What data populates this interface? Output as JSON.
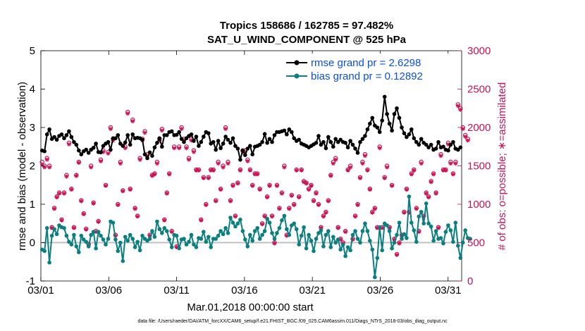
{
  "chart_data": {
    "type": "line",
    "title_line1": "Tropics 158686 / 162785 = 97.482%",
    "title_line2": "SAT_U_WIND_COMPONENT @ 525 hPa",
    "xlabel": "Mar.01,2018 00:00:00 start",
    "ylabel_left": "rmse and bias (model - observation)",
    "ylabel_right": "# of obs: o=possible; ∗=assimilated",
    "footer": "data file: /Users/raeder/DAI/ATM_forcXX/CAM6_setup/f.e21.FHIST_BGC.f09_025.CAM6assim.011/Diags_NTrS_2018-03/obs_diag_output.nc",
    "x_tick_labels": [
      "03/01",
      "03/06",
      "03/11",
      "03/16",
      "03/21",
      "03/26",
      "03/31"
    ],
    "x_tick_days": [
      1,
      6,
      11,
      16,
      21,
      26,
      31
    ],
    "xlim": [
      1,
      32
    ],
    "ylim_left": [
      -1,
      5
    ],
    "ylim_right": [
      0,
      3000
    ],
    "y_ticks_left": [
      "-1",
      "0",
      "1",
      "2",
      "3",
      "4",
      "5"
    ],
    "y_ticks_right": [
      "0",
      "500",
      "1000",
      "1500",
      "2000",
      "2500",
      "3000"
    ],
    "legend": [
      "rmse grand pr = 2.6298",
      "bias grand pr = 0.12892"
    ],
    "colors": {
      "rmse": "#000000",
      "bias": "#0a7f7f",
      "obs": "#cc1155",
      "zero_line": "#c0c0c0",
      "legend_text": "#0b4fe0"
    },
    "rmse": [
      2.4,
      2.38,
      2.82,
      2.95,
      2.7,
      2.75,
      2.68,
      2.78,
      2.82,
      2.72,
      2.8,
      2.9,
      2.75,
      2.62,
      2.55,
      2.4,
      2.3,
      2.38,
      2.42,
      2.34,
      2.42,
      2.47,
      2.58,
      2.36,
      2.35,
      2.52,
      2.58,
      2.62,
      2.42,
      2.72,
      2.72,
      2.8,
      2.58,
      2.52,
      2.61,
      2.8,
      2.55,
      2.82,
      2.72,
      2.73,
      2.72,
      2.68,
      2.3,
      2.2,
      2.35,
      2.26,
      2.48,
      2.6,
      2.72,
      2.5,
      2.8,
      2.8,
      2.88,
      2.9,
      2.8,
      2.81,
      2.88,
      2.7,
      2.62,
      2.72,
      2.78,
      2.82,
      2.65,
      2.76,
      2.52,
      2.62,
      2.76,
      2.88,
      2.85,
      2.58,
      2.62,
      2.42,
      2.65,
      2.46,
      2.58,
      2.76,
      2.68,
      2.6,
      2.72,
      2.52,
      2.45,
      2.16,
      2.4,
      2.28,
      2.45,
      2.52,
      2.3,
      2.5,
      2.52,
      2.55,
      2.62,
      2.83,
      2.6,
      2.7,
      2.62,
      2.8,
      2.88,
      2.88,
      2.9,
      2.92,
      2.82,
      2.95,
      2.88,
      2.72,
      2.65,
      2.68,
      2.58,
      2.55,
      2.52,
      2.48,
      2.52,
      2.56,
      2.6,
      2.78,
      2.55,
      2.62,
      2.46,
      2.75,
      2.62,
      2.5,
      2.7,
      2.62,
      2.68,
      2.62,
      2.6,
      2.48,
      2.65,
      2.55,
      2.45,
      2.34,
      2.62,
      2.7,
      2.78,
      2.95,
      3.1,
      3.25,
      3.05,
      3.0,
      2.88,
      3.18,
      3.8,
      3.35,
      3.1,
      2.92,
      3.35,
      3.5,
      3.25,
      3.0,
      2.85,
      2.75,
      2.82,
      2.95,
      2.72,
      2.62,
      2.55,
      2.7,
      2.6,
      2.55,
      2.48,
      2.55,
      2.42,
      2.45,
      2.62,
      2.48,
      2.5,
      2.42,
      2.4,
      2.55,
      2.62,
      2.45,
      2.42,
      2.48
    ],
    "bias": [
      -0.18,
      -0.22,
      0.38,
      -0.52,
      0.18,
      0.35,
      0.22,
      0.45,
      0.4,
      0.38,
      0.18,
      0.02,
      -0.05,
      0.2,
      -0.1,
      -0.25,
      0.18,
      0.08,
      0.02,
      -0.1,
      0.2,
      0.28,
      -0.15,
      0.28,
      0.18,
      0.08,
      -0.05,
      0.1,
      0.55,
      0.52,
      0.08,
      -0.22,
      0.0,
      -0.48,
      0.15,
      0.05,
      0.2,
      0.1,
      -0.12,
      0.02,
      -0.2,
      0.18,
      0.1,
      0.05,
      0.1,
      0.3,
      0.15,
      0.55,
      0.35,
      0.25,
      0.38,
      0.3,
      0.08,
      -0.12,
      0.2,
      0.18,
      -0.15,
      0.08,
      0.1,
      -0.05,
      0.02,
      0.2,
      -0.05,
      -0.12,
      0.12,
      0.1,
      0.28,
      0.02,
      0.15,
      -0.12,
      0.1,
      0.1,
      0.18,
      0.3,
      0.22,
      0.38,
      0.25,
      0.65,
      0.52,
      0.42,
      0.5,
      0.6,
      0.3,
      0.08,
      -0.1,
      0.2,
      0.05,
      0.3,
      0.38,
      0.1,
      0.2,
      0.3,
      0.62,
      0.52,
      0.25,
      0.1,
      0.25,
      0.38,
      0.58,
      0.7,
      0.35,
      0.2,
      0.45,
      0.5,
      0.35,
      -0.05,
      0.18,
      0.4,
      -0.15,
      0.2,
      0.05,
      -0.22,
      0.1,
      0.25,
      0.32,
      -0.1,
      0.2,
      0.3,
      -0.12,
      0.15,
      0.0,
      0.08,
      -0.18,
      -0.05,
      -0.35,
      -0.12,
      -0.2,
      0.2,
      0.3,
      0.1,
      0.0,
      0.3,
      0.5,
      0.3,
      0.05,
      -0.18,
      -0.9,
      -0.4,
      0.4,
      -0.2,
      0.5,
      0.45,
      0.3,
      -0.15,
      0.0,
      0.2,
      0.52,
      0.1,
      0.22,
      0.12,
      1.2,
      0.52,
      0.32,
      0.02,
      0.68,
      0.8,
      0.5,
      1.02,
      0.5,
      0.42,
      0.05,
      0.3,
      0.1,
      0.12,
      -0.02,
      0.28,
      0.45,
      0.32,
      0.02,
      0.52,
      -0.08,
      -0.4,
      0.0,
      0.32,
      0.12,
      0.1
    ],
    "obs_possible": [
      1550,
      1500,
      1600,
      1500,
      700,
      950,
      1100,
      1150,
      800,
      1150,
      1380,
      1800,
      1200,
      700,
      1380,
      1550,
      1050,
      880,
      680,
      480,
      1500,
      1020,
      650,
      780,
      1580,
      1700,
      1250,
      1680,
      2000,
      1850,
      600,
      1000,
      1550,
      1180,
      1750,
      2200,
      1200,
      2100,
      950,
      850,
      1600,
      1850,
      1950,
      1650,
      600,
      1380,
      1400,
      1550,
      1850,
      1980,
      800,
      1150,
      1400,
      650,
      1750,
      450,
      1750,
      2000,
      1850,
      1750,
      1600,
      1850,
      1700,
      1450,
      1450,
      800,
      1350,
      1000,
      1350,
      1450,
      1450,
      1050,
      1550,
      1200,
      1500,
      2000,
      1550,
      1050,
      1250,
      850,
      1280,
      1450,
      1700,
      1700,
      1580,
      1450,
      1250,
      1400,
      1400,
      1200,
      750,
      850,
      1100,
      1250,
      850,
      500,
      1250,
      950,
      1150,
      1500,
      600,
      950,
      1120,
      1000,
      1450,
      1100,
      1450,
      1300,
      1280,
      1200,
      1250,
      1050,
      1150,
      1000,
      700,
      850,
      900,
      1050,
      1380,
      1550,
      1600,
      700,
      550,
      500,
      650,
      1450,
      1500,
      550,
      850,
      1000,
      1350,
      1550,
      1650,
      1450,
      1200,
      900,
      950,
      700,
      1750,
      700,
      1350,
      1500,
      700,
      1250,
      550,
      350,
      500,
      600,
      900,
      1200,
      900,
      1400,
      1450,
      950,
      650,
      1550,
      850,
      1150,
      1100,
      1300,
      1400,
      1150,
      700,
      1650,
      1450,
      1450,
      1800,
      1550,
      1400,
      1550,
      2300,
      2250,
      2000,
      1900,
      1850
    ],
    "obs_assimilated": [
      1520,
      1480,
      1580,
      1480,
      690,
      940,
      1090,
      1140,
      790,
      1140,
      1360,
      1780,
      1190,
      690,
      1370,
      1540,
      1040,
      870,
      670,
      470,
      1480,
      1010,
      640,
      770,
      1560,
      1680,
      1240,
      1660,
      1980,
      1830,
      590,
      990,
      1530,
      1170,
      1730,
      2180,
      1190,
      2080,
      940,
      840,
      1580,
      1830,
      1930,
      1630,
      590,
      1370,
      1390,
      1530,
      1830,
      1960,
      790,
      1140,
      1390,
      640,
      1730,
      440,
      1730,
      1980,
      1830,
      1730,
      1580,
      1830,
      1680,
      1440,
      1440,
      790,
      1340,
      990,
      1340,
      1440,
      1440,
      1040,
      1530,
      1190,
      1480,
      1980,
      1530,
      1040,
      1240,
      840,
      1270,
      1440,
      1680,
      1680,
      1560,
      1440,
      1240,
      1390,
      1390,
      1190,
      740,
      840,
      1090,
      1240,
      840,
      490,
      1240,
      940,
      1140,
      1480,
      590,
      940,
      1110,
      990,
      1440,
      1090,
      1440,
      1290,
      1270,
      1190,
      1240,
      1040,
      1140,
      990,
      690,
      840,
      890,
      1040,
      1370,
      1530,
      1580,
      690,
      540,
      490,
      640,
      1440,
      1480,
      540,
      840,
      990,
      1340,
      1530,
      1630,
      1440,
      1190,
      890,
      940,
      690,
      1730,
      690,
      1340,
      1480,
      690,
      1240,
      540,
      340,
      490,
      590,
      890,
      1190,
      890,
      1390,
      1440,
      940,
      640,
      1530,
      840,
      1140,
      1090,
      1290,
      1390,
      1140,
      690,
      1630,
      1440,
      1440,
      1780,
      1530,
      1390,
      1530,
      2280,
      2230,
      1980,
      1880,
      1830
    ]
  }
}
